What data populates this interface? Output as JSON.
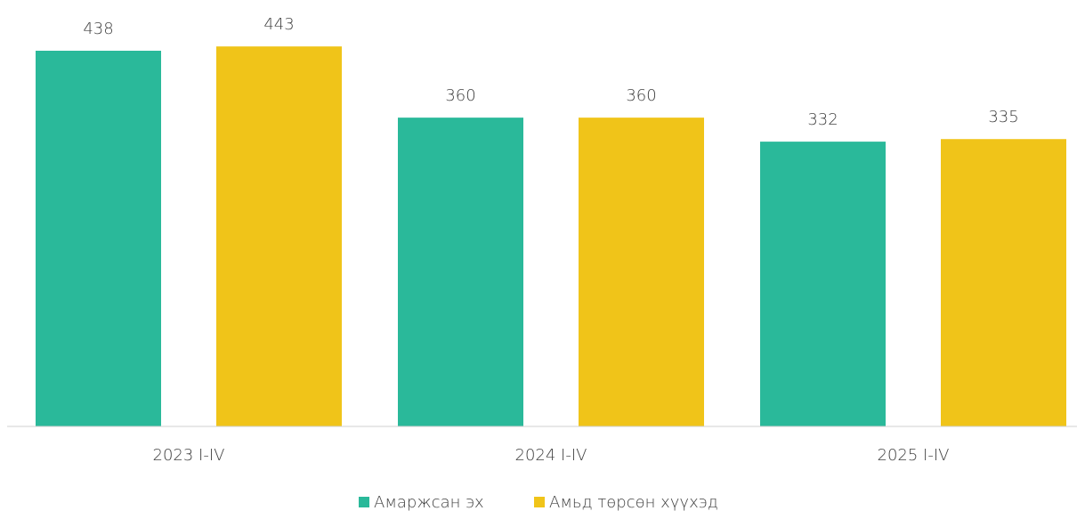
{
  "chart_data": {
    "type": "bar",
    "categories": [
      "2023 I-IV",
      "2024 I-IV",
      "2025 I-IV"
    ],
    "series": [
      {
        "name": "Амаржсан эх",
        "color": "#2ab99a",
        "values": [
          438,
          360,
          332
        ]
      },
      {
        "name": "Амьд төрсөн хүүхэд",
        "color": "#f0c419",
        "values": [
          443,
          360,
          335
        ]
      }
    ]
  }
}
